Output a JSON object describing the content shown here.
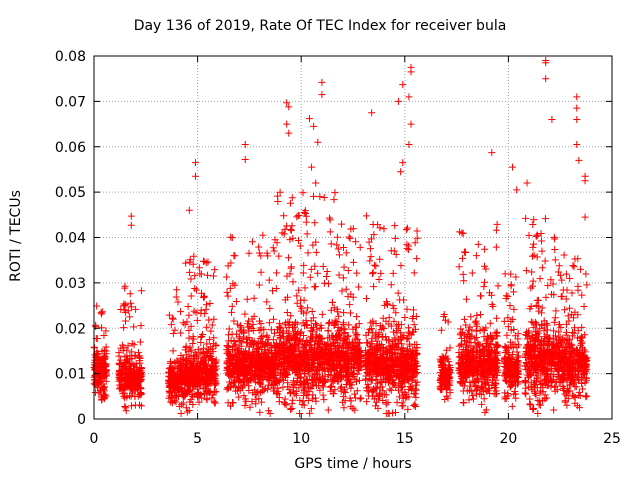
{
  "chart_data": {
    "type": "scatter",
    "title": "Day 136 of 2019, Rate Of TEC Index for receiver bula",
    "xlabel": "GPS time / hours",
    "ylabel": "ROTI / TECUs",
    "xlim": [
      0,
      25
    ],
    "ylim": [
      0,
      0.08
    ],
    "grid": true,
    "marker": "+",
    "color": "#ff0000",
    "x_ticks": [
      0,
      5,
      10,
      15,
      20,
      25
    ],
    "x_tick_labels": [
      "0",
      "5",
      "10",
      "15",
      "20",
      "25"
    ],
    "y_ticks": [
      0,
      0.01,
      0.02,
      0.03,
      0.04,
      0.05,
      0.06,
      0.07,
      0.08
    ],
    "y_tick_labels": [
      "0",
      "0.01",
      "0.02",
      "0.03",
      "0.04",
      "0.05",
      "0.06",
      "0.07",
      "0.08"
    ],
    "clusters": [
      {
        "start": 0.0,
        "end": 0.6,
        "base": 0.008,
        "spread": 0.008,
        "peak": 0.025
      },
      {
        "start": 1.2,
        "end": 2.3,
        "base": 0.007,
        "spread": 0.007,
        "peak": 0.03
      },
      {
        "start": 3.6,
        "end": 4.4,
        "base": 0.006,
        "spread": 0.006,
        "peak": 0.029
      },
      {
        "start": 4.4,
        "end": 5.9,
        "base": 0.008,
        "spread": 0.008,
        "peak": 0.037
      },
      {
        "start": 6.4,
        "end": 8.8,
        "base": 0.01,
        "spread": 0.01,
        "peak": 0.042
      },
      {
        "start": 8.8,
        "end": 11.7,
        "base": 0.011,
        "spread": 0.012,
        "peak": 0.05
      },
      {
        "start": 11.7,
        "end": 12.9,
        "base": 0.011,
        "spread": 0.012,
        "peak": 0.044
      },
      {
        "start": 13.1,
        "end": 15.6,
        "base": 0.01,
        "spread": 0.012,
        "peak": 0.045
      },
      {
        "start": 16.7,
        "end": 17.2,
        "base": 0.008,
        "spread": 0.006,
        "peak": 0.027
      },
      {
        "start": 17.6,
        "end": 19.5,
        "base": 0.01,
        "spread": 0.01,
        "peak": 0.043
      },
      {
        "start": 19.8,
        "end": 20.5,
        "base": 0.009,
        "spread": 0.008,
        "peak": 0.032
      },
      {
        "start": 20.8,
        "end": 22.4,
        "base": 0.011,
        "spread": 0.012,
        "peak": 0.045
      },
      {
        "start": 22.4,
        "end": 23.8,
        "base": 0.01,
        "spread": 0.01,
        "peak": 0.037
      }
    ],
    "outliers": [
      {
        "x": 1.8,
        "y": 0.0447
      },
      {
        "x": 1.8,
        "y": 0.0427
      },
      {
        "x": 4.6,
        "y": 0.046
      },
      {
        "x": 4.9,
        "y": 0.0565
      },
      {
        "x": 4.9,
        "y": 0.0535
      },
      {
        "x": 7.3,
        "y": 0.0605
      },
      {
        "x": 7.3,
        "y": 0.0572
      },
      {
        "x": 9.3,
        "y": 0.0697
      },
      {
        "x": 9.4,
        "y": 0.0688
      },
      {
        "x": 9.3,
        "y": 0.065
      },
      {
        "x": 9.4,
        "y": 0.063
      },
      {
        "x": 10.4,
        "y": 0.0662
      },
      {
        "x": 10.6,
        "y": 0.0645
      },
      {
        "x": 10.8,
        "y": 0.061
      },
      {
        "x": 11.0,
        "y": 0.0742
      },
      {
        "x": 11.0,
        "y": 0.0715
      },
      {
        "x": 10.5,
        "y": 0.0555
      },
      {
        "x": 10.7,
        "y": 0.052
      },
      {
        "x": 10.9,
        "y": 0.049
      },
      {
        "x": 13.4,
        "y": 0.0675
      },
      {
        "x": 14.9,
        "y": 0.0737
      },
      {
        "x": 14.7,
        "y": 0.07
      },
      {
        "x": 15.3,
        "y": 0.0775
      },
      {
        "x": 15.3,
        "y": 0.0765
      },
      {
        "x": 15.2,
        "y": 0.071
      },
      {
        "x": 15.3,
        "y": 0.065
      },
      {
        "x": 15.2,
        "y": 0.0605
      },
      {
        "x": 14.8,
        "y": 0.0545
      },
      {
        "x": 14.9,
        "y": 0.0565
      },
      {
        "x": 19.2,
        "y": 0.0587
      },
      {
        "x": 20.2,
        "y": 0.0555
      },
      {
        "x": 20.4,
        "y": 0.0505
      },
      {
        "x": 20.9,
        "y": 0.052
      },
      {
        "x": 21.8,
        "y": 0.079
      },
      {
        "x": 21.8,
        "y": 0.0785
      },
      {
        "x": 21.8,
        "y": 0.075
      },
      {
        "x": 22.1,
        "y": 0.066
      },
      {
        "x": 23.3,
        "y": 0.071
      },
      {
        "x": 23.3,
        "y": 0.0685
      },
      {
        "x": 23.3,
        "y": 0.066
      },
      {
        "x": 23.3,
        "y": 0.0605
      },
      {
        "x": 23.4,
        "y": 0.057
      },
      {
        "x": 23.7,
        "y": 0.0535
      },
      {
        "x": 23.7,
        "y": 0.0525
      },
      {
        "x": 23.7,
        "y": 0.0445
      }
    ]
  }
}
